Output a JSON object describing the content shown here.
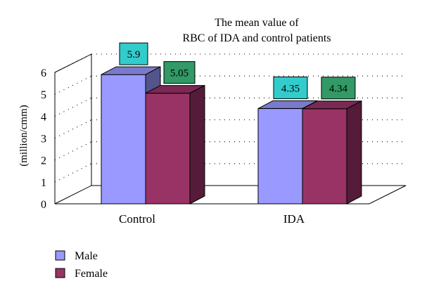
{
  "chart_data": {
    "type": "bar",
    "title_lines": [
      "The mean value of",
      "RBC of IDA and control patients"
    ],
    "ylabel": "(million/cmm)",
    "xlabel": "",
    "categories": [
      "Control",
      "IDA"
    ],
    "series": [
      {
        "name": "Male",
        "values": [
          5.9,
          4.35
        ],
        "color": "#9999ff",
        "label_bg": "#33cccc"
      },
      {
        "name": "Female",
        "values": [
          5.05,
          4.34
        ],
        "color": "#993366",
        "label_bg": "#339966"
      }
    ],
    "data_labels": [
      [
        "5.9",
        "4.35"
      ],
      [
        "5.05",
        "4.34"
      ]
    ],
    "ylim": [
      0,
      6
    ],
    "yticks": [
      "0",
      "1",
      "2",
      "3",
      "4",
      "5",
      "6"
    ],
    "grid": true,
    "three_d": true,
    "legend_position": "bottom-left"
  }
}
